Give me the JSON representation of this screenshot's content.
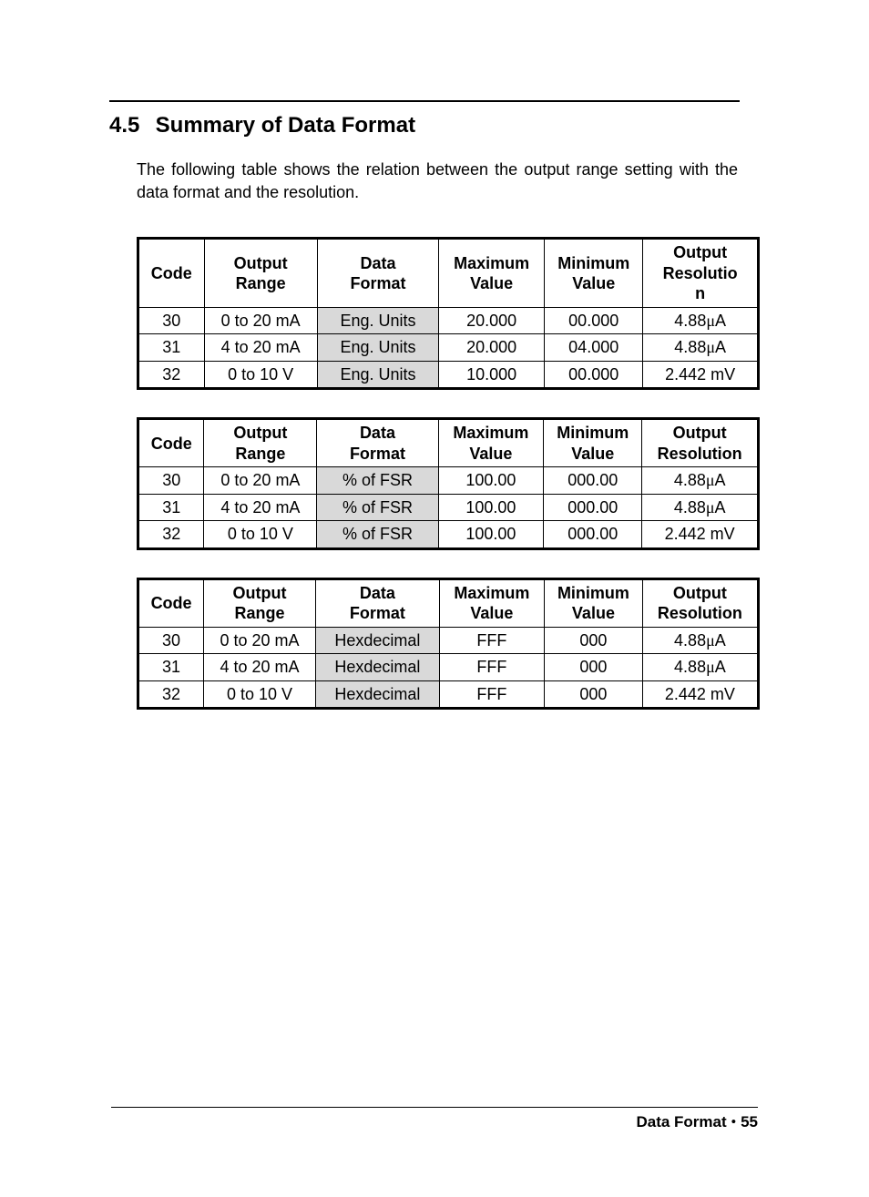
{
  "heading": {
    "number": "4.5",
    "title": "Summary of Data Format"
  },
  "intro": "The following table shows the relation between the output range setting with the data format and the resolution.",
  "tables": [
    {
      "columns": [
        "Code",
        "Output Range",
        "Data Format",
        "Maximum Value",
        "Minimum Value",
        "Output Resolution"
      ],
      "rows": [
        {
          "code": "30",
          "range": "0 to 20 mA",
          "format": "Eng. Units",
          "max": "20.000",
          "min": "00.000",
          "res": "4.88μA",
          "shade_format": true
        },
        {
          "code": "31",
          "range": "4 to 20 mA",
          "format": "Eng. Units",
          "max": "20.000",
          "min": "04.000",
          "res": "4.88μA",
          "shade_format": true
        },
        {
          "code": "32",
          "range": "0 to 10 V",
          "format": "Eng. Units",
          "max": "10.000",
          "min": "00.000",
          "res": "2.442 mV",
          "shade_format": true
        }
      ]
    },
    {
      "columns": [
        "Code",
        "Output Range",
        "Data Format",
        "Maximum Value",
        "Minimum Value",
        "Output Resolution"
      ],
      "rows": [
        {
          "code": "30",
          "range": "0 to 20 mA",
          "format": "% of FSR",
          "max": "100.00",
          "min": "000.00",
          "res": "4.88μA",
          "shade_format": true
        },
        {
          "code": "31",
          "range": "4 to 20 mA",
          "format": "% of FSR",
          "max": "100.00",
          "min": "000.00",
          "res": "4.88μA",
          "shade_format": true
        },
        {
          "code": "32",
          "range": "0 to 10 V",
          "format": "% of FSR",
          "max": "100.00",
          "min": "000.00",
          "res": "2.442 mV",
          "shade_format": true
        }
      ]
    },
    {
      "columns": [
        "Code",
        "Output Range",
        "Data Format",
        "Maximum Value",
        "Minimum Value",
        "Output Resolution"
      ],
      "rows": [
        {
          "code": "30",
          "range": "0 to 20 mA",
          "format": "Hexdecimal",
          "max": "FFF",
          "min": "000",
          "res": "4.88μA",
          "shade_format": true
        },
        {
          "code": "31",
          "range": "4 to 20 mA",
          "format": "Hexdecimal",
          "max": "FFF",
          "min": "000",
          "res": "4.88μA",
          "shade_format": true
        },
        {
          "code": "32",
          "range": "0 to 10 V",
          "format": "Hexdecimal",
          "max": "FFF",
          "min": "000",
          "res": "2.442 mV",
          "shade_format": true
        }
      ]
    }
  ],
  "footer": {
    "label": "Data Format",
    "page": "55",
    "separator": "•"
  },
  "colors": {
    "shade": "#d9d9d9",
    "text": "#000000",
    "background": "#ffffff"
  }
}
